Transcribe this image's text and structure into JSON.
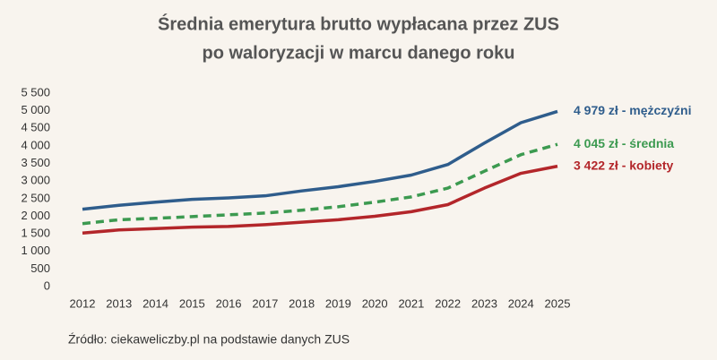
{
  "chart_data": {
    "type": "line",
    "title": "Średnia emerytura brutto wypłacana przez ZUS",
    "subtitle": "po waloryzacji w marcu danego roku",
    "source": "Źródło: ciekaweliczby.pl na podstawie danych ZUS",
    "categories": [
      "2012",
      "2013",
      "2014",
      "2015",
      "2016",
      "2017",
      "2018",
      "2019",
      "2020",
      "2021",
      "2022",
      "2023",
      "2024",
      "2025"
    ],
    "series": [
      {
        "name": "4 979 zł - mężczyźni",
        "color": "#2f5d8c",
        "style": "solid",
        "values": [
          2200,
          2310,
          2400,
          2480,
          2520,
          2580,
          2720,
          2840,
          2990,
          3170,
          3470,
          4080,
          4660,
          4979
        ]
      },
      {
        "name": "4 045 zł - średnia",
        "color": "#3c9a50",
        "style": "dashed",
        "values": [
          1790,
          1900,
          1940,
          1990,
          2040,
          2090,
          2170,
          2270,
          2400,
          2550,
          2800,
          3280,
          3750,
          4045
        ]
      },
      {
        "name": "3 422 zł - kobiety",
        "color": "#b3262a",
        "style": "solid",
        "values": [
          1520,
          1610,
          1650,
          1690,
          1710,
          1760,
          1830,
          1900,
          2000,
          2130,
          2330,
          2800,
          3220,
          3422
        ]
      }
    ],
    "ylim": [
      0,
      5500
    ],
    "yticks": [
      0,
      500,
      {
        "value": 1000,
        "label": "1 000"
      },
      {
        "value": 1500,
        "label": "1 500"
      },
      {
        "value": 2000,
        "label": "2 000"
      },
      {
        "value": 2500,
        "label": "2 500"
      },
      {
        "value": 3000,
        "label": "3 000"
      },
      {
        "value": 3500,
        "label": "3 500"
      },
      {
        "value": 4000,
        "label": "4 000"
      },
      {
        "value": 4500,
        "label": "4 500"
      },
      {
        "value": 5000,
        "label": "5 000"
      },
      {
        "value": 5500,
        "label": "5 500"
      }
    ],
    "grid": false
  }
}
